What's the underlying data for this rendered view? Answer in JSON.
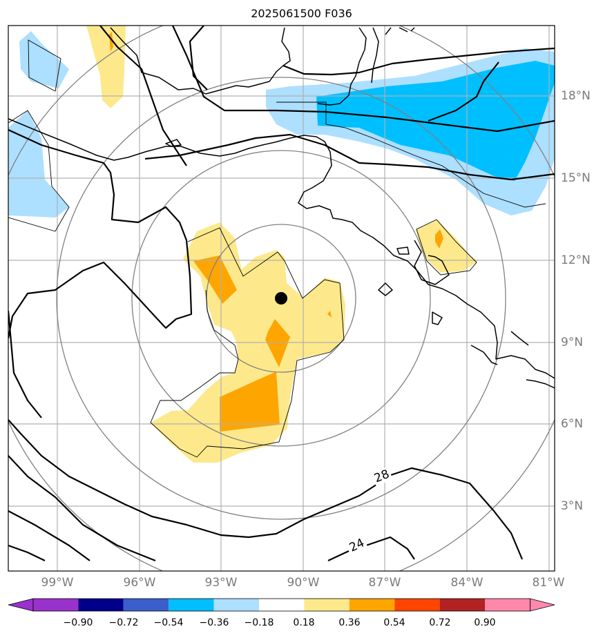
{
  "title": "2025061500 F036",
  "map": {
    "lon_labels": [
      "99°W",
      "96°W",
      "93°W",
      "90°W",
      "87°W",
      "84°W",
      "81°W"
    ],
    "lat_labels": [
      "18°N",
      "15°N",
      "12°N",
      "9°N",
      "6°N",
      "3°N"
    ],
    "contour_labels": [
      "28",
      "24"
    ],
    "storm_center": "●",
    "colors": {
      "light_yellow": "#fde98c",
      "orange": "#ffa500",
      "light_blue": "#addfff",
      "deep_sky_blue": "#00bfff",
      "grid": "#b0b0b0",
      "range_rings": "#808080",
      "coast": "#000000"
    }
  },
  "colorbar": {
    "labels": [
      "−0.90",
      "−0.72",
      "−0.54",
      "−0.36",
      "−0.18",
      "0.18",
      "0.36",
      "0.54",
      "0.72",
      "0.90"
    ],
    "colors": [
      "#9932cc",
      "#00008b",
      "#3a5fcd",
      "#00bfff",
      "#addfff",
      "#ffffff",
      "#fde98c",
      "#ffa500",
      "#ff4500",
      "#b22222",
      "#ff88aa",
      "#ff88aa"
    ]
  }
}
